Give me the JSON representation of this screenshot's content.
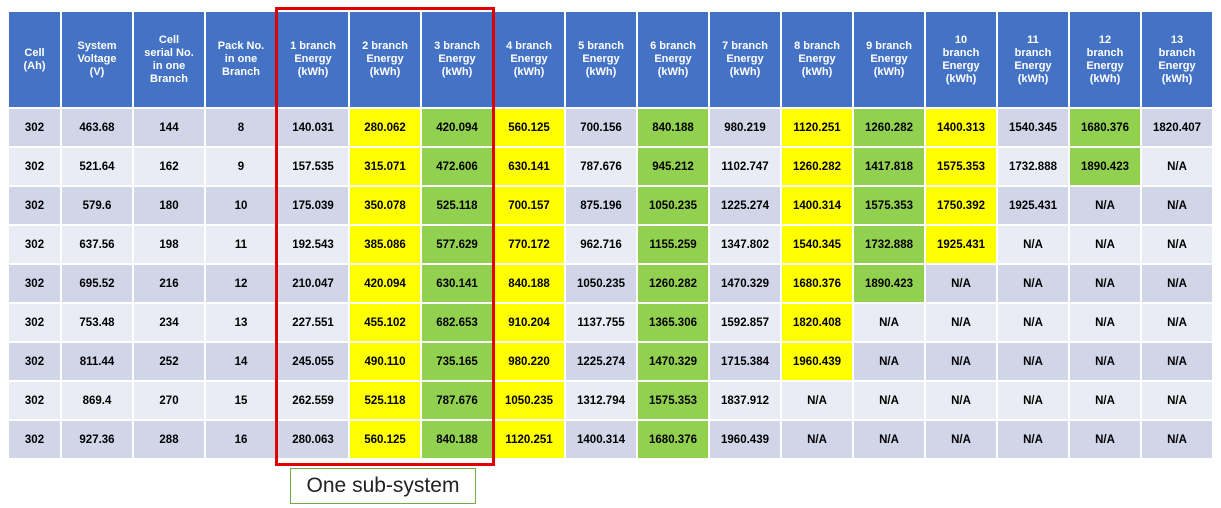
{
  "colors": {
    "header_bg": "#4472c4",
    "row_odd": "#d0d5e8",
    "row_even": "#e9ebf5",
    "yellow": "#ffff00",
    "green": "#92d050",
    "frame": "#e00000",
    "legend_border": "#70ad47"
  },
  "table": {
    "headers": [
      [
        "Cell",
        "(Ah)"
      ],
      [
        "System",
        "Voltage",
        "(V)"
      ],
      [
        "Cell",
        "serial No.",
        "in one",
        "Branch"
      ],
      [
        "Pack No.",
        "in one",
        "Branch"
      ],
      [
        "1 branch",
        "Energy",
        "(kWh)"
      ],
      [
        "2 branch",
        "Energy",
        "(kWh)"
      ],
      [
        "3 branch",
        "Energy",
        "(kWh)"
      ],
      [
        "4 branch",
        "Energy",
        "(kWh)"
      ],
      [
        "5 branch",
        "Energy",
        "(kWh)"
      ],
      [
        "6 branch",
        "Energy",
        "(kWh)"
      ],
      [
        "7 branch",
        "Energy",
        "(kWh)"
      ],
      [
        "8 branch",
        "Energy",
        "(kWh)"
      ],
      [
        "9 branch",
        "Energy",
        "(kWh)"
      ],
      [
        "10",
        "branch",
        "Energy",
        "(kWh)"
      ],
      [
        "11",
        "branch",
        "Energy",
        "(kWh)"
      ],
      [
        "12",
        "branch",
        "Energy",
        "(kWh)"
      ],
      [
        "13",
        "branch",
        "Energy",
        "(kWh)"
      ]
    ],
    "rows": [
      [
        "302",
        "463.68",
        "144",
        "8",
        "140.031",
        "280.062",
        "420.094",
        "560.125",
        "700.156",
        "840.188",
        "980.219",
        "1120.251",
        "1260.282",
        "1400.313",
        "1540.345",
        "1680.376",
        "1820.407"
      ],
      [
        "302",
        "521.64",
        "162",
        "9",
        "157.535",
        "315.071",
        "472.606",
        "630.141",
        "787.676",
        "945.212",
        "1102.747",
        "1260.282",
        "1417.818",
        "1575.353",
        "1732.888",
        "1890.423",
        "N/A"
      ],
      [
        "302",
        "579.6",
        "180",
        "10",
        "175.039",
        "350.078",
        "525.118",
        "700.157",
        "875.196",
        "1050.235",
        "1225.274",
        "1400.314",
        "1575.353",
        "1750.392",
        "1925.431",
        "N/A",
        "N/A"
      ],
      [
        "302",
        "637.56",
        "198",
        "11",
        "192.543",
        "385.086",
        "577.629",
        "770.172",
        "962.716",
        "1155.259",
        "1347.802",
        "1540.345",
        "1732.888",
        "1925.431",
        "N/A",
        "N/A",
        "N/A"
      ],
      [
        "302",
        "695.52",
        "216",
        "12",
        "210.047",
        "420.094",
        "630.141",
        "840.188",
        "1050.235",
        "1260.282",
        "1470.329",
        "1680.376",
        "1890.423",
        "N/A",
        "N/A",
        "N/A",
        "N/A"
      ],
      [
        "302",
        "753.48",
        "234",
        "13",
        "227.551",
        "455.102",
        "682.653",
        "910.204",
        "1137.755",
        "1365.306",
        "1592.857",
        "1820.408",
        "N/A",
        "N/A",
        "N/A",
        "N/A",
        "N/A"
      ],
      [
        "302",
        "811.44",
        "252",
        "14",
        "245.055",
        "490.110",
        "735.165",
        "980.220",
        "1225.274",
        "1470.329",
        "1715.384",
        "1960.439",
        "N/A",
        "N/A",
        "N/A",
        "N/A",
        "N/A"
      ],
      [
        "302",
        "869.4",
        "270",
        "15",
        "262.559",
        "525.118",
        "787.676",
        "1050.235",
        "1312.794",
        "1575.353",
        "1837.912",
        "N/A",
        "N/A",
        "N/A",
        "N/A",
        "N/A",
        "N/A"
      ],
      [
        "302",
        "927.36",
        "288",
        "16",
        "280.063",
        "560.125",
        "840.188",
        "1120.251",
        "1400.314",
        "1680.376",
        "1960.439",
        "N/A",
        "N/A",
        "N/A",
        "N/A",
        "N/A",
        "N/A"
      ]
    ],
    "highlights": [
      [
        "",
        "",
        "",
        "",
        "",
        "y",
        "g",
        "y",
        "",
        "g",
        "",
        "y",
        "g",
        "y",
        "",
        "g",
        ""
      ],
      [
        "",
        "",
        "",
        "",
        "",
        "y",
        "g",
        "y",
        "",
        "g",
        "",
        "y",
        "g",
        "y",
        "",
        "g",
        ""
      ],
      [
        "",
        "",
        "",
        "",
        "",
        "y",
        "g",
        "y",
        "",
        "g",
        "",
        "y",
        "g",
        "y",
        "",
        "",
        ""
      ],
      [
        "",
        "",
        "",
        "",
        "",
        "y",
        "g",
        "y",
        "",
        "g",
        "",
        "y",
        "g",
        "y",
        "",
        "",
        ""
      ],
      [
        "",
        "",
        "",
        "",
        "",
        "y",
        "g",
        "y",
        "",
        "g",
        "",
        "y",
        "g",
        "",
        "",
        "",
        ""
      ],
      [
        "",
        "",
        "",
        "",
        "",
        "y",
        "g",
        "y",
        "",
        "g",
        "",
        "y",
        "",
        "",
        "",
        "",
        ""
      ],
      [
        "",
        "",
        "",
        "",
        "",
        "y",
        "g",
        "y",
        "",
        "g",
        "",
        "y",
        "",
        "",
        "",
        "",
        ""
      ],
      [
        "",
        "",
        "",
        "",
        "",
        "y",
        "g",
        "y",
        "",
        "g",
        "",
        "",
        "",
        "",
        "",
        "",
        ""
      ],
      [
        "",
        "",
        "",
        "",
        "",
        "y",
        "g",
        "y",
        "",
        "g",
        "",
        "",
        "",
        "",
        "",
        "",
        ""
      ]
    ]
  },
  "annotation": {
    "label": "One sub-system"
  }
}
